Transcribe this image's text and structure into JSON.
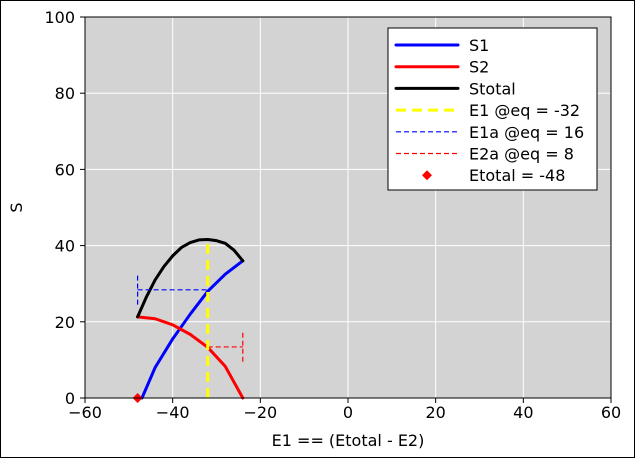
{
  "chart_data": {
    "type": "line",
    "title": "",
    "xlabel": "E1 == (Etotal - E2)",
    "ylabel": "S",
    "xlim": [
      -60,
      60
    ],
    "ylim": [
      0,
      100
    ],
    "xticks": [
      -60,
      -40,
      -20,
      0,
      20,
      40,
      60
    ],
    "yticks": [
      0,
      20,
      40,
      60,
      80,
      100
    ],
    "xtick_labels": [
      "−60",
      "−40",
      "−20",
      "0",
      "20",
      "40",
      "60"
    ],
    "ytick_labels": [
      "0",
      "20",
      "40",
      "60",
      "80",
      "100"
    ],
    "grid": true,
    "background": "#d3d3d3",
    "legend_position": "top-right",
    "series": [
      {
        "name": "S1",
        "color": "#0000ff",
        "style": "solid",
        "x": [
          -47,
          -44,
          -40,
          -36,
          -32,
          -28,
          -24
        ],
        "y": [
          0,
          8,
          15.5,
          22,
          28,
          32.5,
          36
        ]
      },
      {
        "name": "S2",
        "color": "#ff0000",
        "style": "solid",
        "x": [
          -48,
          -44,
          -40,
          -36,
          -32,
          -28,
          -24
        ],
        "y": [
          21.3,
          20.8,
          19.2,
          16.7,
          13.3,
          8.3,
          0
        ]
      },
      {
        "name": "Stotal",
        "color": "#000000",
        "style": "solid",
        "x": [
          -48,
          -46,
          -44,
          -42,
          -40,
          -38,
          -36,
          -34,
          -32,
          -30,
          -28,
          -26,
          -24
        ],
        "y": [
          21.3,
          26.5,
          31,
          34.5,
          37.3,
          39.5,
          40.8,
          41.5,
          41.6,
          41.3,
          40.6,
          38.8,
          36
        ]
      },
      {
        "name": "E1 @eq = -32",
        "color": "#ffff00",
        "style": "dashed-thick",
        "x": [
          -32,
          -32
        ],
        "y": [
          0,
          42
        ]
      },
      {
        "name": "E1a @eq = 16",
        "color": "#0000ff",
        "style": "dashed",
        "x": [
          -48,
          -32
        ],
        "y": [
          28.4,
          28.4
        ],
        "cap": {
          "x": -48,
          "y": [
            24.5,
            32.5
          ]
        }
      },
      {
        "name": "E2a @eq = 8",
        "color": "#ff0000",
        "style": "dashed",
        "x": [
          -32,
          -24
        ],
        "y": [
          13.4,
          13.4
        ],
        "cap": {
          "x": -24,
          "y": [
            9.5,
            17.5
          ]
        }
      },
      {
        "name": "Etotal = -48",
        "color": "#ff0000",
        "style": "marker-diamond",
        "x": [
          -48
        ],
        "y": [
          0
        ]
      }
    ]
  }
}
